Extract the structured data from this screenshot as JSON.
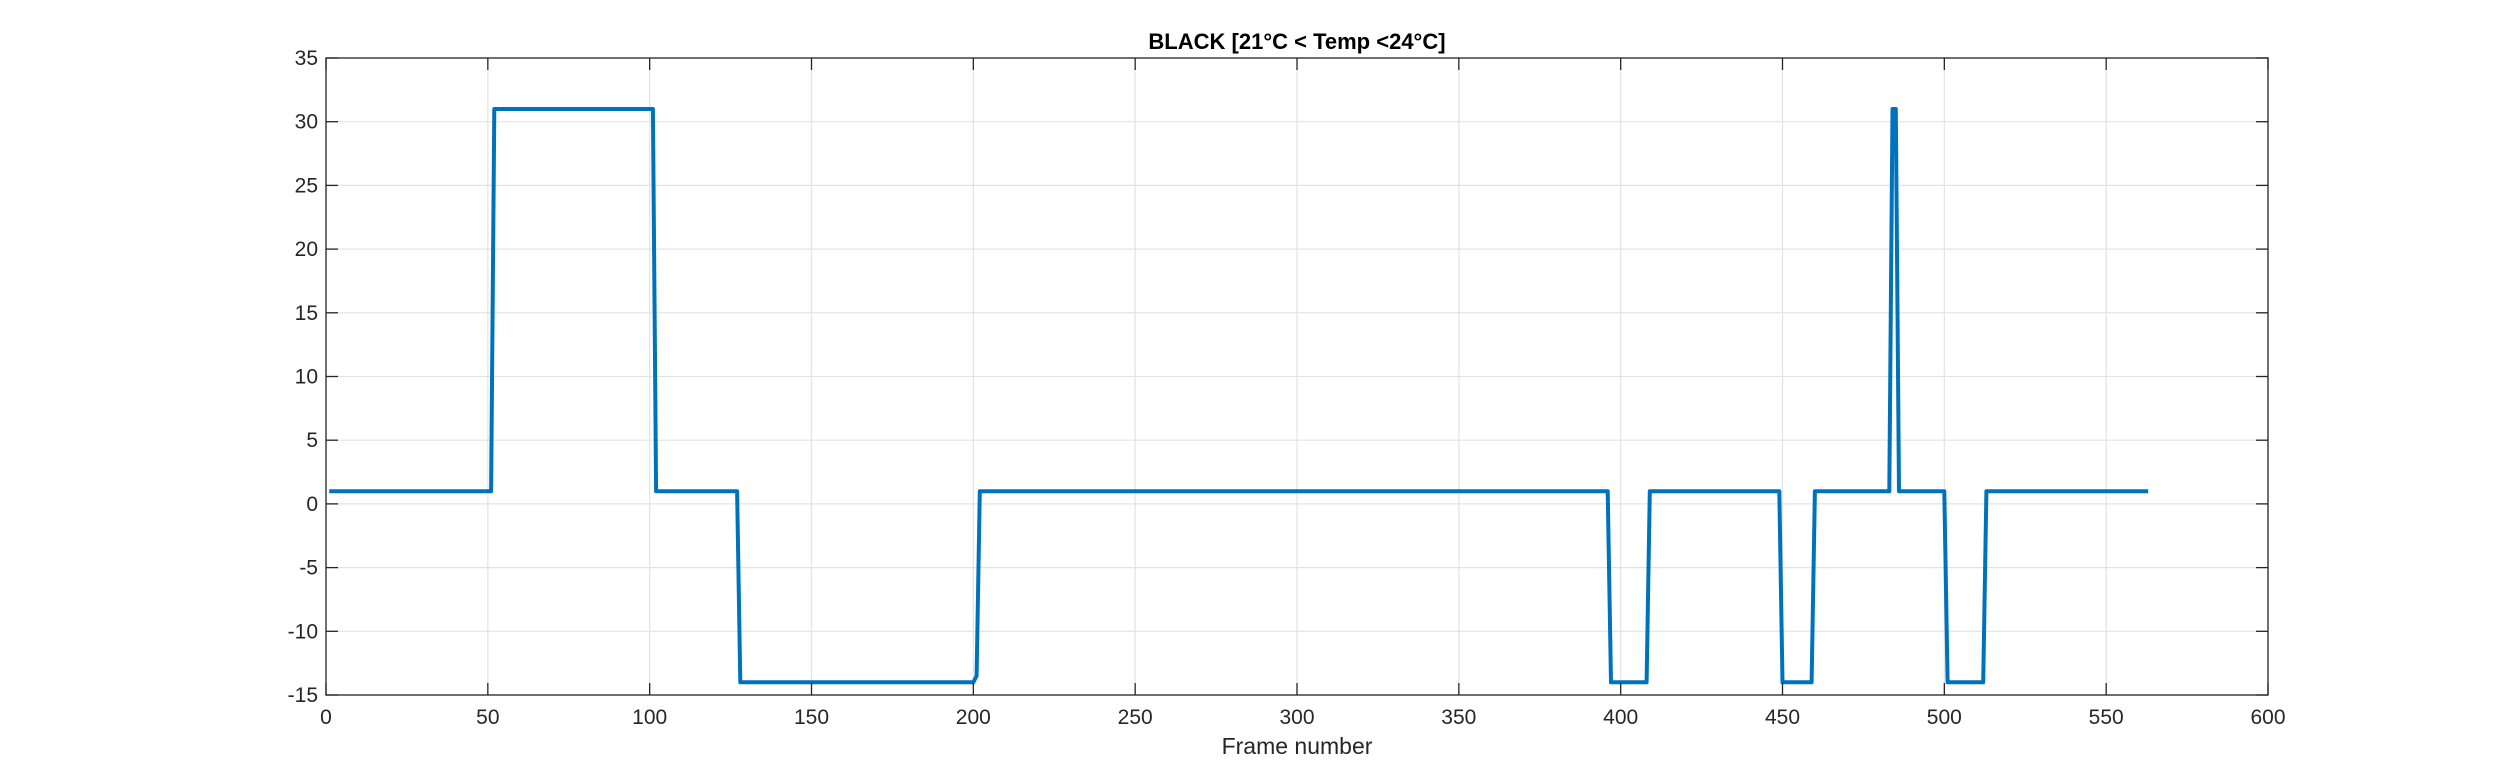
{
  "chart_data": {
    "type": "line",
    "title": "BLACK [21°C < Temp <24°C]",
    "xlabel": "Frame number",
    "ylabel": "",
    "xlim": [
      0,
      600
    ],
    "ylim": [
      -15,
      35
    ],
    "xticks": [
      0,
      50,
      100,
      150,
      200,
      250,
      300,
      350,
      400,
      450,
      500,
      550,
      600
    ],
    "yticks": [
      -15,
      -10,
      -5,
      0,
      5,
      10,
      15,
      20,
      25,
      30,
      35
    ],
    "grid": true,
    "series": [
      {
        "color": "#0072BD",
        "x": [
          1,
          51,
          52,
          101,
          102,
          127,
          128,
          200,
          201,
          202,
          396,
          397,
          408,
          409,
          449,
          450,
          459,
          460,
          483,
          484,
          485,
          486,
          500,
          501,
          512,
          513,
          563
        ],
        "y": [
          1,
          1,
          31,
          31,
          1,
          1,
          -14,
          -14,
          -13.5,
          1,
          1,
          -14,
          -14,
          1,
          1,
          -14,
          -14,
          1,
          1,
          31,
          31,
          1,
          1,
          -14,
          -14,
          1,
          1
        ]
      }
    ]
  }
}
